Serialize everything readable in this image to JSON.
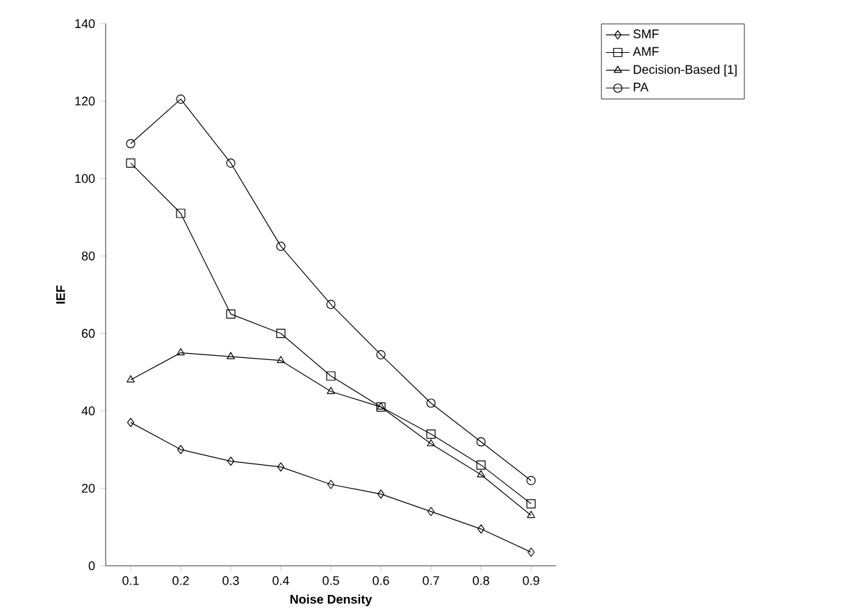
{
  "chart_data": {
    "type": "line",
    "xlabel": "Noise Density",
    "ylabel": "IEF",
    "categories": [
      "0.1",
      "0.2",
      "0.3",
      "0.4",
      "0.5",
      "0.6",
      "0.7",
      "0.8",
      "0.9"
    ],
    "series": [
      {
        "name": "SMF",
        "color": "#000000",
        "marker": "diamond",
        "values": [
          37,
          30,
          27,
          25.5,
          21,
          18.5,
          14,
          9.5,
          3.5
        ]
      },
      {
        "name": "AMF",
        "color": "#000000",
        "marker": "square",
        "values": [
          104,
          91,
          65,
          60,
          49,
          41,
          34,
          26,
          16
        ]
      },
      {
        "name": "Decision-Based [1]",
        "color": "#000000",
        "marker": "triangle",
        "values": [
          48,
          55,
          54,
          53,
          45,
          41,
          31.5,
          23.5,
          13
        ]
      },
      {
        "name": "PA",
        "color": "#000000",
        "marker": "circle",
        "values": [
          109,
          120.5,
          104,
          82.5,
          67.5,
          54.5,
          42,
          32,
          22
        ]
      }
    ],
    "ylim": [
      0,
      140
    ],
    "yticks": [
      0,
      20,
      40,
      60,
      80,
      100,
      120,
      140
    ],
    "grid": false,
    "legend": "top right",
    "line_style": "solid"
  }
}
